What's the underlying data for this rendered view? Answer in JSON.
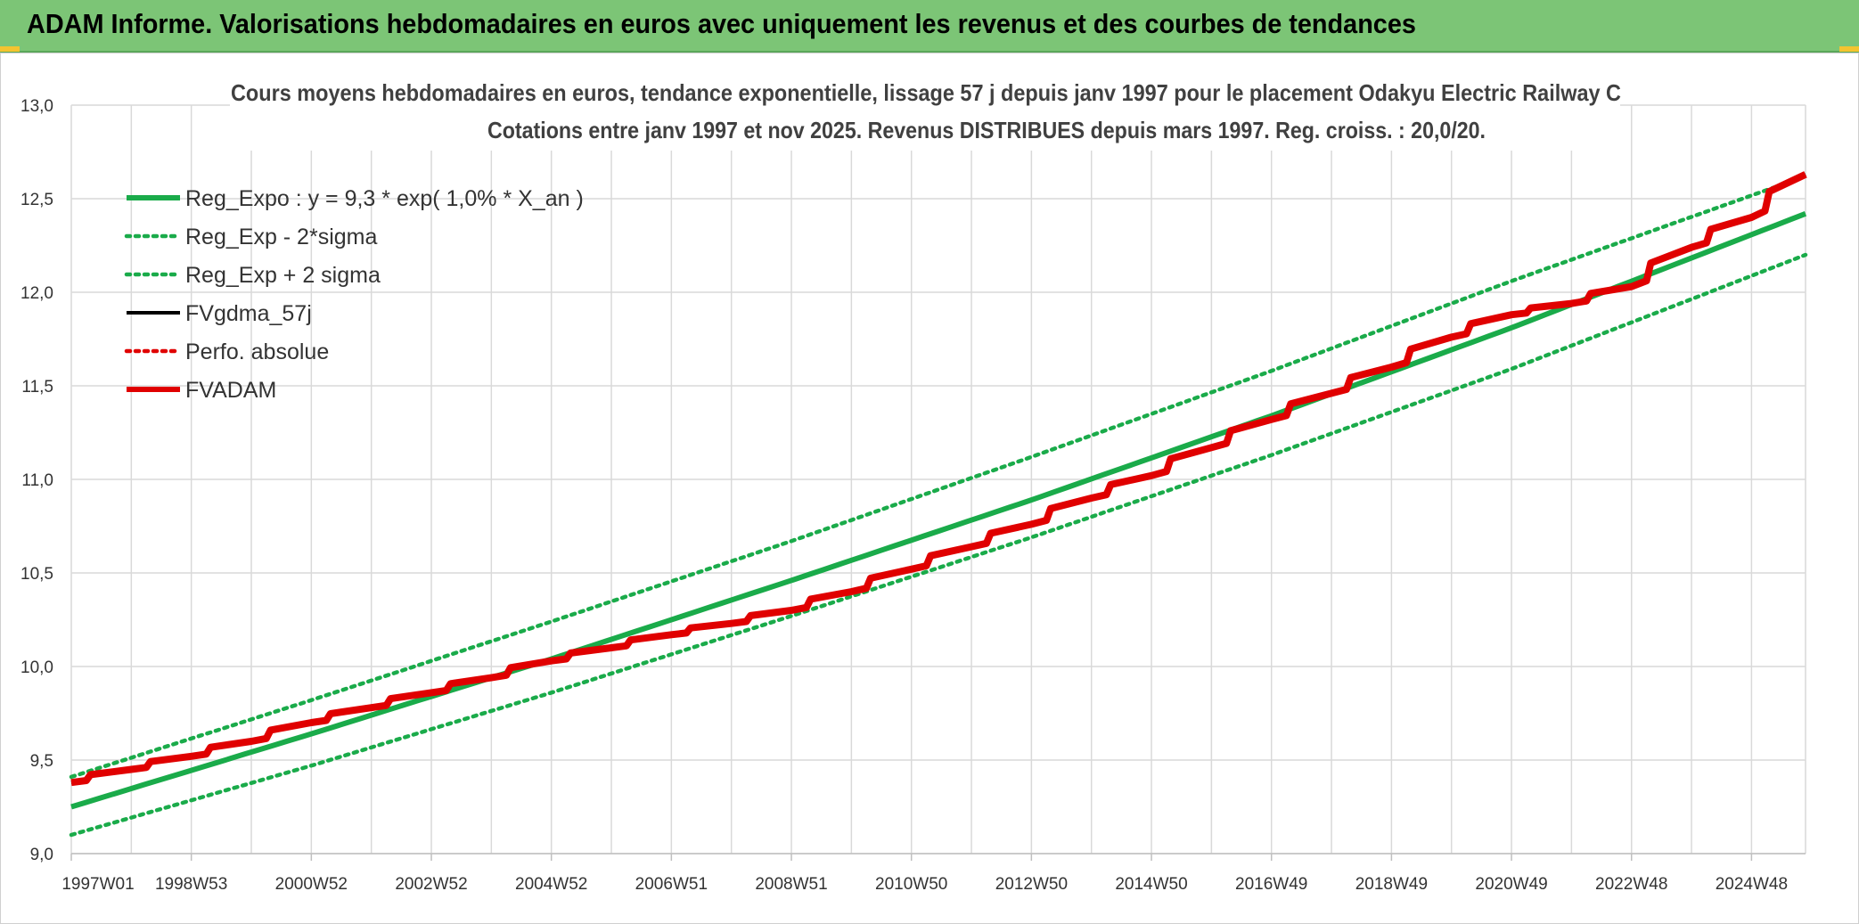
{
  "header": {
    "title": "ADAM Informe. Valorisations hebdomadaires en euros avec uniquement les revenus et des courbes de tendances"
  },
  "colors": {
    "banner": "#7cc576",
    "reg_expo": "#1aab4a",
    "fvgdma": "#000000",
    "perfo": "#e00000",
    "fvadam": "#e00000",
    "grid": "#d9d9d9"
  },
  "chart_data": {
    "type": "line",
    "title": "Cours moyens hebdomadaires en euros, tendance exponentielle, lissage 57 j depuis janv 1997 pour le placement Odakyu Electric Railway C",
    "subtitle": "Cotations entre janv 1997 et nov 2025. Revenus DISTRIBUES depuis mars 1997. Reg. croiss. : 20,0/20.",
    "xlabel": "",
    "ylabel": "",
    "ylim": [
      9.0,
      13.0
    ],
    "yticks": [
      "9,0",
      "9,5",
      "10,0",
      "10,5",
      "11,0",
      "11,5",
      "12,0",
      "12,5",
      "13,0"
    ],
    "xlim": [
      1997.0,
      2025.9
    ],
    "xticks": [
      {
        "label": "1997W01",
        "x": 1997.0
      },
      {
        "label": "1998W53",
        "x": 1999.0
      },
      {
        "label": "2000W52",
        "x": 2001.0
      },
      {
        "label": "2002W52",
        "x": 2003.0
      },
      {
        "label": "2004W52",
        "x": 2005.0
      },
      {
        "label": "2006W51",
        "x": 2007.0
      },
      {
        "label": "2008W51",
        "x": 2009.0
      },
      {
        "label": "2010W50",
        "x": 2011.0
      },
      {
        "label": "2012W50",
        "x": 2013.0
      },
      {
        "label": "2014W50",
        "x": 2015.0
      },
      {
        "label": "2016W49",
        "x": 2017.0
      },
      {
        "label": "2018W49",
        "x": 2019.0
      },
      {
        "label": "2020W49",
        "x": 2021.0
      },
      {
        "label": "2022W48",
        "x": 2023.0
      },
      {
        "label": "2024W48",
        "x": 2025.0
      }
    ],
    "grid": true,
    "legend_position": "top-left",
    "series": [
      {
        "name": "Reg_Expo : y = 9,3 * exp( 1,0% *  X_an )",
        "style": "solid",
        "color": "#1aab4a",
        "x": [
          1997.0,
          2001.0,
          2005.0,
          2009.0,
          2013.0,
          2017.0,
          2021.0,
          2025.9
        ],
        "values": [
          9.25,
          9.64,
          10.04,
          10.46,
          10.89,
          11.34,
          11.81,
          12.42
        ]
      },
      {
        "name": "Reg_Exp - 2*sigma",
        "style": "dotted",
        "color": "#1aab4a",
        "x": [
          1997.0,
          2001.0,
          2005.0,
          2009.0,
          2013.0,
          2017.0,
          2021.0,
          2025.9
        ],
        "values": [
          9.1,
          9.47,
          9.86,
          10.27,
          10.69,
          11.13,
          11.59,
          12.2
        ]
      },
      {
        "name": "Reg_Exp + 2 sigma",
        "style": "dotted",
        "color": "#1aab4a",
        "x": [
          1997.0,
          2001.0,
          2005.0,
          2009.0,
          2013.0,
          2017.0,
          2021.0,
          2025.9
        ],
        "values": [
          9.41,
          9.82,
          10.24,
          10.67,
          11.12,
          11.58,
          12.06,
          12.62
        ]
      },
      {
        "name": "FVgdma_57j",
        "style": "solid-thin",
        "color": "#000000",
        "x": [
          1997.0,
          1998.0,
          1999.0,
          2000.0,
          2001.0,
          2002.0,
          2003.0,
          2004.0,
          2005.0,
          2006.0,
          2007.0,
          2008.0,
          2009.0,
          2010.0,
          2011.0,
          2012.0,
          2013.0,
          2014.0,
          2015.0,
          2016.0,
          2017.0,
          2018.0,
          2019.0,
          2020.0,
          2021.0,
          2022.0,
          2023.0,
          2024.0,
          2025.0,
          2025.9
        ],
        "values": [
          9.38,
          9.45,
          9.52,
          9.6,
          9.7,
          9.78,
          9.86,
          9.94,
          10.03,
          10.1,
          10.17,
          10.23,
          10.3,
          10.4,
          10.52,
          10.64,
          10.76,
          10.9,
          11.02,
          11.17,
          11.32,
          11.46,
          11.6,
          11.76,
          11.88,
          11.94,
          12.03,
          12.24,
          12.4,
          12.63
        ]
      },
      {
        "name": "Perfo. absolue",
        "style": "dotted",
        "color": "#e00000",
        "x": [],
        "values": []
      },
      {
        "name": "FVADAM",
        "style": "step-thick",
        "color": "#e00000",
        "x": [
          1997.0,
          1998.0,
          1999.0,
          2000.0,
          2001.0,
          2002.0,
          2003.0,
          2004.0,
          2005.0,
          2006.0,
          2007.0,
          2008.0,
          2009.0,
          2010.0,
          2011.0,
          2012.0,
          2013.0,
          2014.0,
          2015.0,
          2016.0,
          2017.0,
          2018.0,
          2019.0,
          2020.0,
          2021.0,
          2022.0,
          2023.0,
          2024.0,
          2025.0,
          2025.9
        ],
        "values": [
          9.38,
          9.45,
          9.52,
          9.6,
          9.7,
          9.78,
          9.86,
          9.94,
          10.03,
          10.1,
          10.17,
          10.23,
          10.3,
          10.4,
          10.52,
          10.64,
          10.76,
          10.9,
          11.02,
          11.17,
          11.32,
          11.46,
          11.6,
          11.76,
          11.88,
          11.94,
          12.03,
          12.24,
          12.4,
          12.63
        ]
      }
    ]
  }
}
